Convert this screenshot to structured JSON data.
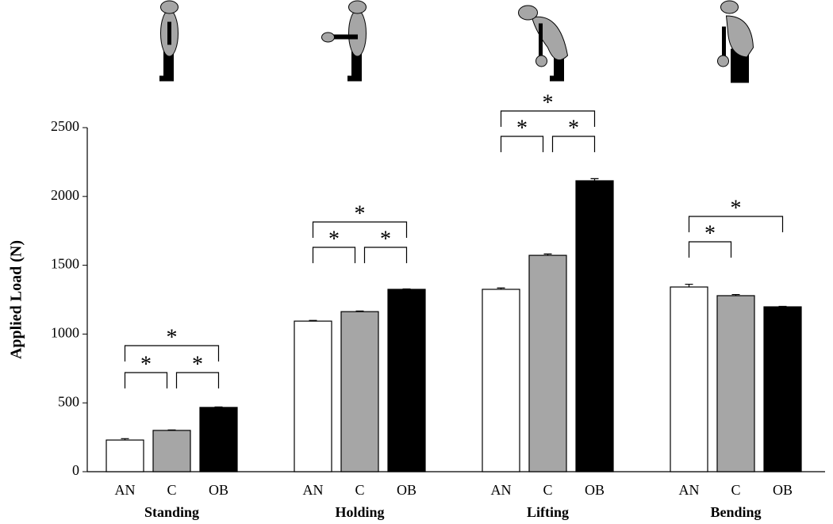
{
  "chart_data": {
    "type": "bar",
    "y_label": "Applied Load (N)",
    "categories": [
      "Standing",
      "Holding",
      "Lifting",
      "Bending"
    ],
    "series": [
      {
        "name": "AN",
        "color": "#ffffff",
        "values": [
          230,
          1094,
          1325,
          1342
        ],
        "errors": [
          10,
          5,
          10,
          20
        ]
      },
      {
        "name": "C",
        "color": "#a6a6a6",
        "values": [
          300,
          1163,
          1572,
          1279
        ],
        "errors": [
          3,
          4,
          10,
          8
        ]
      },
      {
        "name": "OB",
        "color": "#000000",
        "values": [
          467,
          1325,
          2114,
          1198
        ],
        "errors": [
          3,
          3,
          15,
          3
        ]
      }
    ],
    "ylim": [
      0,
      2500
    ],
    "yticks": [
      0,
      500,
      1000,
      1500,
      2000,
      2500
    ],
    "grid": false,
    "annotations": [
      "*",
      "*",
      "*",
      "*",
      "*",
      "*",
      "*",
      "*",
      "*",
      "*",
      "*"
    ]
  }
}
